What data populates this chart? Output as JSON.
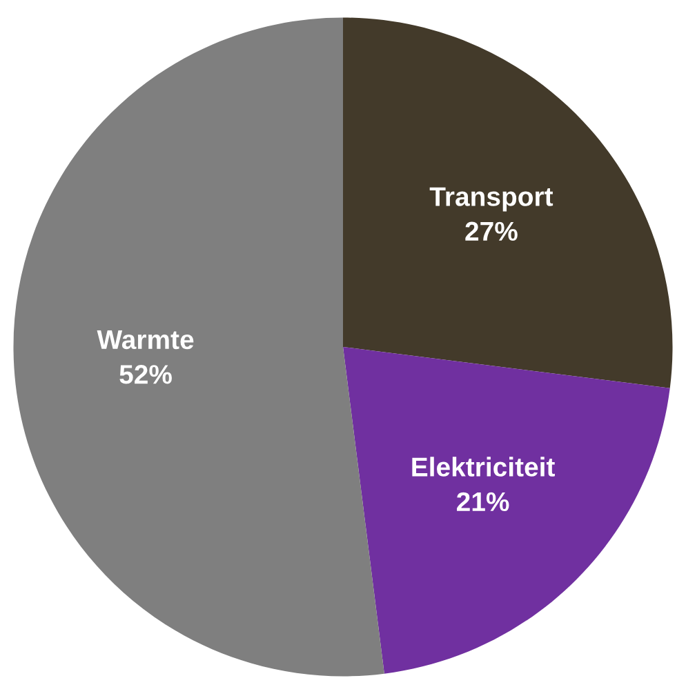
{
  "chart_data": {
    "type": "pie",
    "categories": [
      "Transport",
      "Elektriciteit",
      "Warmte"
    ],
    "values": [
      27,
      21,
      52
    ],
    "colors": [
      "#433a2a",
      "#7030a0",
      "#7f7f7f"
    ],
    "value_labels": [
      "27%",
      "21%",
      "52%"
    ]
  }
}
